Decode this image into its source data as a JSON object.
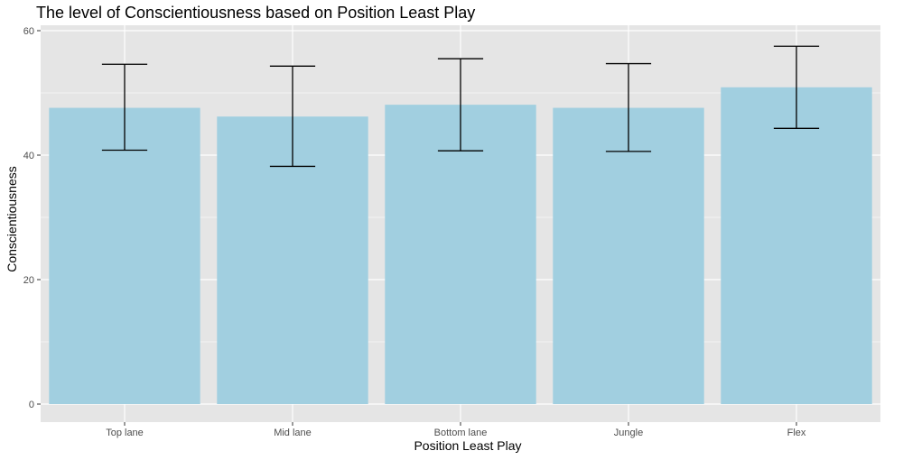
{
  "chart_data": {
    "type": "bar",
    "title": "The level of Conscientiousness based on Position Least Play",
    "xlabel": "Position Least Play",
    "ylabel": "Conscientiousness",
    "categories": [
      "Top lane",
      "Mid lane",
      "Bottom lane",
      "Jungle",
      "Flex"
    ],
    "values": [
      47.6,
      46.2,
      48.1,
      47.6,
      50.9
    ],
    "error_low": [
      40.8,
      38.2,
      40.7,
      40.6,
      44.3
    ],
    "error_high": [
      54.6,
      54.3,
      55.5,
      54.7,
      57.5
    ],
    "ylim": [
      0,
      60
    ],
    "yticks": [
      0,
      20,
      40,
      60
    ],
    "grid": true,
    "legend": "none",
    "colors": {
      "bar": "#a1cfe0",
      "panel": "#e5e5e5",
      "grid": "#ffffff",
      "errorbar": "#000000"
    }
  }
}
